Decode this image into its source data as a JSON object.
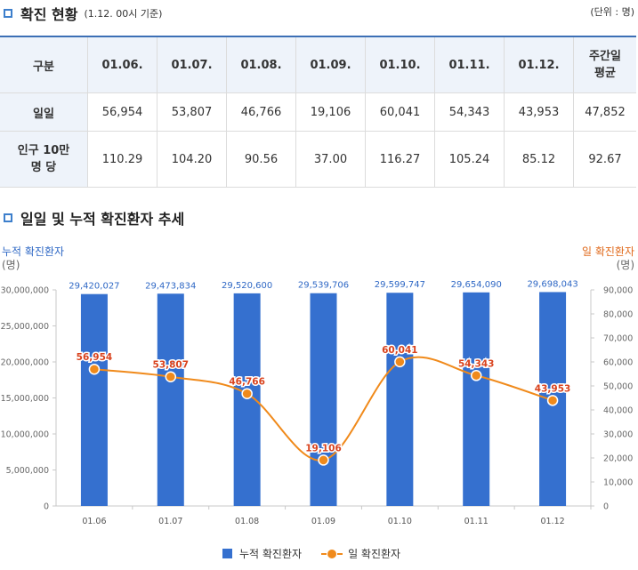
{
  "section1": {
    "title": "확진 현황",
    "subtitle": "(1.12. 00시 기준)",
    "unit": "(단위 : 명)"
  },
  "table": {
    "headers": [
      "구분",
      "01.06.",
      "01.07.",
      "01.08.",
      "01.09.",
      "01.10.",
      "01.11.",
      "01.12.",
      "주간일 평균"
    ],
    "rows": [
      {
        "label": "일일",
        "values": [
          "56,954",
          "53,807",
          "46,766",
          "19,106",
          "60,041",
          "54,343",
          "43,953",
          "47,852"
        ]
      },
      {
        "label": "인구 10만 명 당",
        "values": [
          "110.29",
          "104.20",
          "90.56",
          "37.00",
          "116.27",
          "105.24",
          "85.12",
          "92.67"
        ]
      }
    ]
  },
  "section2": {
    "title": "일일 및 누적 확진환자 추세"
  },
  "chart_data": {
    "type": "bar+line",
    "categories": [
      "01.06",
      "01.07",
      "01.08",
      "01.09",
      "01.10",
      "01.11",
      "01.12"
    ],
    "series": [
      {
        "name": "누적 확진환자",
        "type": "bar",
        "axis": "left",
        "values": [
          29420027,
          29473834,
          29520600,
          29539706,
          29599747,
          29654090,
          29698043
        ],
        "labels": [
          "29,420,027",
          "29,473,834",
          "29,520,600",
          "29,539,706",
          "29,599,747",
          "29,654,090",
          "29,698,043"
        ]
      },
      {
        "name": "일 확진환자",
        "type": "line",
        "axis": "right",
        "values": [
          56954,
          53807,
          46766,
          19106,
          60041,
          54343,
          43953
        ],
        "labels": [
          "56,954",
          "53,807",
          "46,766",
          "19,106",
          "60,041",
          "54,343",
          "43,953"
        ]
      }
    ],
    "left_axis": {
      "title": "누적 확진환자",
      "unit": "(명)",
      "ylim": [
        0,
        30000000
      ],
      "ticks": [
        "0",
        "5,000,000",
        "10,000,000",
        "15,000,000",
        "20,000,000",
        "25,000,000",
        "30,000,000"
      ]
    },
    "right_axis": {
      "title": "일 확진환자",
      "unit": "(명)",
      "ylim": [
        0,
        90000
      ],
      "ticks": [
        "0",
        "10,000",
        "20,000",
        "30,000",
        "40,000",
        "50,000",
        "60,000",
        "70,000",
        "80,000",
        "90,000"
      ]
    },
    "legend": {
      "position": "bottom"
    },
    "colors": {
      "bar": "#3570cf",
      "line": "#f08a1b",
      "bar_label": "#2f68c5",
      "line_label": "#d9431e"
    }
  }
}
